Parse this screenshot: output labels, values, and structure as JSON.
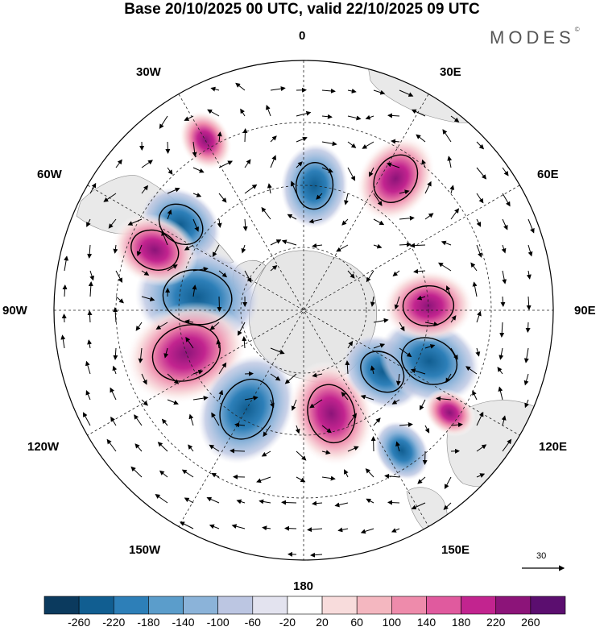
{
  "title": "Base 20/10/2025 00 UTC, valid 22/10/2025 09 UTC",
  "brand": {
    "name": "MODES",
    "mark": "©"
  },
  "longitude_labels": {
    "lon0": "0",
    "lon30e": "30E",
    "lon60e": "60E",
    "lon90e": "90E",
    "lon120e": "120E",
    "lon150e": "150E",
    "lon180": "180",
    "lon150w": "150W",
    "lon120w": "120W",
    "lon90w": "90W",
    "lon60w": "60W",
    "lon30w": "30W"
  },
  "reference_vector": {
    "value": "30"
  },
  "colorbar": {
    "labels": [
      "-260",
      "-220",
      "-180",
      "-140",
      "-100",
      "-60",
      "-20",
      "20",
      "60",
      "100",
      "140",
      "180",
      "220",
      "260"
    ],
    "colors": [
      "#0b3a5e",
      "#115e91",
      "#2d7fb8",
      "#5b9dcb",
      "#8bb3d9",
      "#bcc6e2",
      "#e3e3ef",
      "#ffffff",
      "#f8dcdc",
      "#f4b7c0",
      "#ee8bab",
      "#e05a9e",
      "#c2248f",
      "#8c1479",
      "#5b0e6f"
    ]
  },
  "anomaly_centers": [
    {
      "lat": -60,
      "lon": -83,
      "value": -230
    },
    {
      "lat": -55,
      "lon": -110,
      "value": 230
    },
    {
      "lat": -58,
      "lon": -150,
      "value": -200
    },
    {
      "lat": -60,
      "lon": 165,
      "value": 180
    },
    {
      "lat": -62,
      "lon": 128,
      "value": -120
    },
    {
      "lat": -52,
      "lon": 112,
      "value": -170
    },
    {
      "lat": -55,
      "lon": 88,
      "value": 140
    },
    {
      "lat": -45,
      "lon": 35,
      "value": 140
    },
    {
      "lat": -55,
      "lon": 5,
      "value": -120
    },
    {
      "lat": -48,
      "lon": -55,
      "value": -120
    },
    {
      "lat": -35,
      "lon": -30,
      "value": 60
    },
    {
      "lat": -45,
      "lon": -68,
      "value": 130
    },
    {
      "lat": -42,
      "lon": 145,
      "value": -60
    },
    {
      "lat": -40,
      "lon": 125,
      "value": 40
    }
  ]
}
